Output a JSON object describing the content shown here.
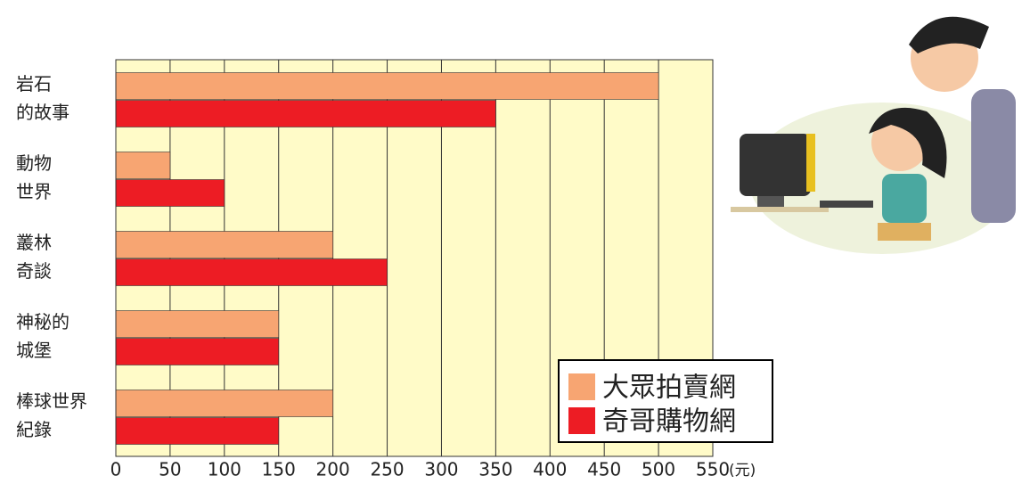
{
  "chart_data": {
    "type": "barh",
    "categories": [
      [
        "岩石",
        "的故事"
      ],
      [
        "動物",
        "世界"
      ],
      [
        "叢林",
        "奇談"
      ],
      [
        "神秘的",
        "城堡"
      ],
      [
        "棒球世界",
        "紀錄"
      ]
    ],
    "series": [
      {
        "name": "大眾拍賣網",
        "color": "#f7a572",
        "values": [
          500,
          50,
          200,
          150,
          200
        ]
      },
      {
        "name": "奇哥購物網",
        "color": "#ed1c24",
        "values": [
          350,
          100,
          250,
          150,
          150
        ]
      }
    ],
    "xlim": [
      0,
      550
    ],
    "xticks": [
      0,
      50,
      100,
      150,
      200,
      250,
      300,
      350,
      400,
      450,
      500,
      550
    ],
    "x_unit": "(元)",
    "grid": true,
    "legend": "lower right"
  }
}
